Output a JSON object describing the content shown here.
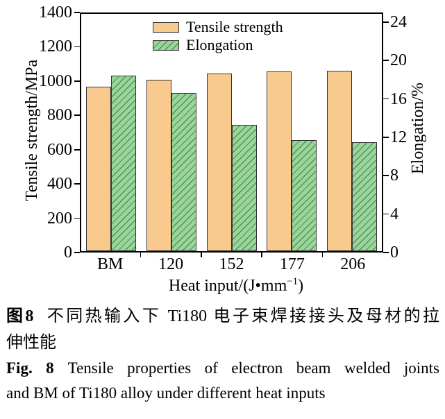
{
  "chart_data": {
    "type": "bar",
    "title": "",
    "categories": [
      "BM",
      "120",
      "152",
      "177",
      "206"
    ],
    "series": [
      {
        "name": "Tensile strength",
        "axis": "left",
        "values": [
          970,
          1010,
          1050,
          1062,
          1066
        ],
        "fill": "#F9CA8E",
        "border": "#333333",
        "hatch": null
      },
      {
        "name": "Elongation",
        "axis": "right",
        "values": [
          18.5,
          16.7,
          13.3,
          11.7,
          11.5
        ],
        "fill": "#9BD59B",
        "border": "#333333",
        "hatch": "#4D9554"
      }
    ],
    "left_axis": {
      "label": "Tensile strength/MPa",
      "min": 0,
      "max": 1400,
      "ticks": [
        0,
        200,
        400,
        600,
        800,
        1000,
        1200,
        1400
      ]
    },
    "right_axis": {
      "label": "Elongation/%",
      "min": 0,
      "max": 25,
      "ticks": [
        0,
        4,
        8,
        12,
        16,
        20,
        24
      ]
    },
    "x_axis": {
      "label_pre": "Heat input/(J•mm",
      "label_sup": "−1",
      "label_post": ")"
    },
    "legend": {
      "position": "top-center-inside"
    },
    "grid": false,
    "frame_color": "#000000"
  },
  "caption_cn": {
    "label": "图8",
    "line1": "不同热输入下 Ti180 电子束焊接接头及母材的拉",
    "line2": "伸性能"
  },
  "caption_en": {
    "label": "Fig. 8",
    "line1": "Tensile properties of electron beam welded joints",
    "line2": "and BM of Ti180 alloy under different heat inputs"
  }
}
